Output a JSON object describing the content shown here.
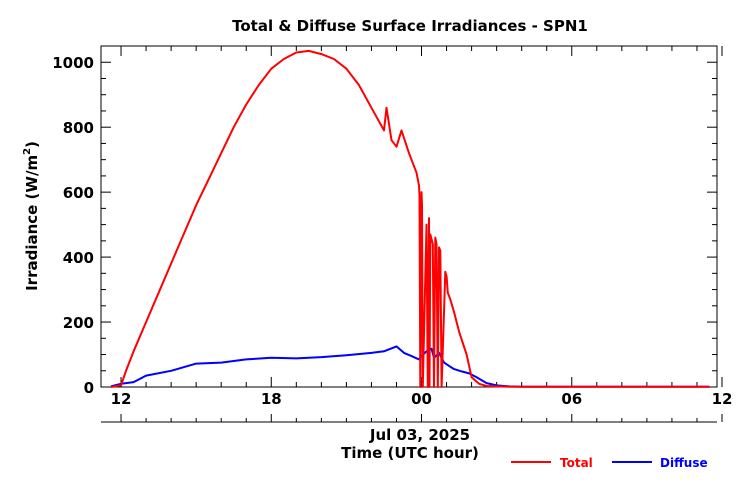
{
  "chart_data": {
    "type": "line",
    "title": "Total & Diffuse Surface Irradiances - SPN1",
    "xlabel": "Time (UTC hour)",
    "ylabel_prefix": "Irradiance (W/m",
    "ylabel_sup": "2",
    "ylabel_suffix": ")",
    "date_label": "Jul 03, 2025",
    "xlim": [
      11.2,
      35.8
    ],
    "ylim": [
      0,
      1050
    ],
    "x_ticks": [
      12,
      18,
      24,
      30,
      36
    ],
    "x_tick_labels": [
      "12",
      "18",
      "00",
      "06",
      "12"
    ],
    "y_ticks": [
      0,
      200,
      400,
      600,
      800,
      1000
    ],
    "y_tick_labels": [
      "0",
      "200",
      "400",
      "600",
      "800",
      "1000"
    ],
    "grid": false,
    "legend_position": "bottom-right",
    "x_unit": "hours UTC (values beyond 24 are the following day)",
    "series": [
      {
        "name": "Total",
        "color": "#ff0000",
        "x": [
          11.6,
          12.0,
          12.2,
          12.5,
          13.0,
          13.5,
          14.0,
          14.5,
          15.0,
          15.5,
          16.0,
          16.5,
          17.0,
          17.5,
          18.0,
          18.5,
          19.0,
          19.5,
          20.0,
          20.5,
          21.0,
          21.5,
          22.0,
          22.5,
          22.6,
          22.8,
          23.0,
          23.2,
          23.5,
          23.8,
          23.9,
          23.92,
          23.95,
          24.0,
          24.02,
          24.05,
          24.2,
          24.25,
          24.3,
          24.32,
          24.35,
          24.45,
          24.5,
          24.55,
          24.6,
          24.65,
          24.7,
          24.75,
          24.8,
          24.95,
          25.0,
          25.05,
          25.15,
          25.3,
          25.5,
          25.8,
          26.0,
          26.3,
          26.6,
          27.0,
          27.5,
          28.0,
          30.0,
          32.0,
          34.0,
          35.5
        ],
        "values": [
          0,
          5,
          50,
          110,
          200,
          290,
          380,
          470,
          560,
          640,
          720,
          800,
          870,
          930,
          980,
          1010,
          1030,
          1035,
          1025,
          1010,
          980,
          930,
          860,
          790,
          860,
          760,
          740,
          790,
          720,
          660,
          620,
          590,
          0,
          600,
          560,
          0,
          500,
          0,
          520,
          0,
          470,
          440,
          0,
          460,
          440,
          0,
          430,
          420,
          0,
          355,
          340,
          290,
          270,
          230,
          170,
          100,
          30,
          10,
          3,
          2,
          1,
          1,
          1,
          1,
          1,
          1
        ]
      },
      {
        "name": "Diffuse",
        "color": "#0000ff",
        "x": [
          11.6,
          12.0,
          12.5,
          13.0,
          14.0,
          15.0,
          16.0,
          17.0,
          18.0,
          19.0,
          20.0,
          21.0,
          22.0,
          22.5,
          23.0,
          23.3,
          23.6,
          23.9,
          24.0,
          24.2,
          24.4,
          24.5,
          24.7,
          24.9,
          25.1,
          25.3,
          25.6,
          25.9,
          26.2,
          26.6,
          27.0,
          27.5,
          28.0,
          30.0,
          32.0,
          34.0,
          35.5
        ],
        "values": [
          2,
          10,
          15,
          35,
          50,
          72,
          75,
          85,
          90,
          88,
          92,
          98,
          105,
          110,
          125,
          105,
          95,
          85,
          95,
          110,
          118,
          90,
          105,
          75,
          65,
          55,
          48,
          42,
          30,
          12,
          5,
          2,
          1,
          1,
          1,
          1,
          1
        ]
      }
    ]
  }
}
